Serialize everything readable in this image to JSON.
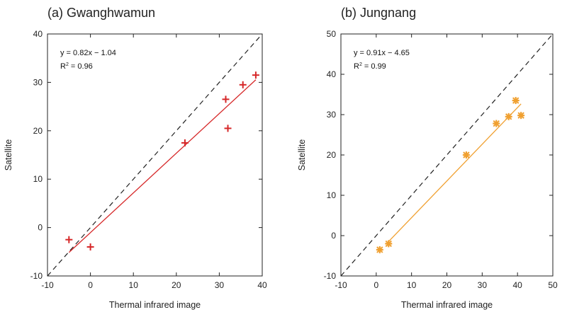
{
  "chart_data": [
    {
      "type": "scatter",
      "title": "(a) Gwanghwamun",
      "xlabel": "Thermal infrared image",
      "ylabel": "Satellite",
      "xlim": [
        -10,
        40
      ],
      "ylim": [
        -10,
        40
      ],
      "xticks": [
        "-10",
        "0",
        "10",
        "20",
        "30",
        "40"
      ],
      "yticks": [
        "-10",
        "0",
        "10",
        "20",
        "30",
        "40"
      ],
      "marker": "plus",
      "color": "#d62728",
      "points": [
        {
          "x": -5,
          "y": -2.5
        },
        {
          "x": 0,
          "y": -4
        },
        {
          "x": 22,
          "y": 17.5
        },
        {
          "x": 31.5,
          "y": 26.5
        },
        {
          "x": 32,
          "y": 20.5
        },
        {
          "x": 35.5,
          "y": 29.5
        },
        {
          "x": 38.5,
          "y": 31.5
        }
      ],
      "fit": {
        "slope": 0.82,
        "intercept": -1.04,
        "x_range": [
          -5,
          38.5
        ]
      },
      "annotation": {
        "equation": "y = 0.82x − 1.04",
        "r2_label": "R",
        "r2_value": "= 0.96"
      },
      "reference_line": "1:1 dashed"
    },
    {
      "type": "scatter",
      "title": "(b) Jungnang",
      "xlabel": "Thermal infrared image",
      "ylabel": "Satellite",
      "xlim": [
        -10,
        50
      ],
      "ylim": [
        -10,
        50
      ],
      "xticks": [
        "-10",
        "0",
        "10",
        "20",
        "30",
        "40",
        "50"
      ],
      "yticks": [
        "-10",
        "0",
        "10",
        "20",
        "30",
        "40",
        "50"
      ],
      "marker": "star",
      "color": "#f0a030",
      "points": [
        {
          "x": 1,
          "y": -3.5
        },
        {
          "x": 3.5,
          "y": -2
        },
        {
          "x": 25.5,
          "y": 20
        },
        {
          "x": 34,
          "y": 27.8
        },
        {
          "x": 37.5,
          "y": 29.5
        },
        {
          "x": 39.5,
          "y": 33.5
        },
        {
          "x": 41,
          "y": 29.8
        }
      ],
      "fit": {
        "slope": 0.91,
        "intercept": -4.65,
        "x_range": [
          3,
          41
        ]
      },
      "annotation": {
        "equation": "y = 0.91x − 4.65",
        "r2_label": "R",
        "r2_value": "= 0.99"
      },
      "reference_line": "1:1 dashed"
    }
  ]
}
